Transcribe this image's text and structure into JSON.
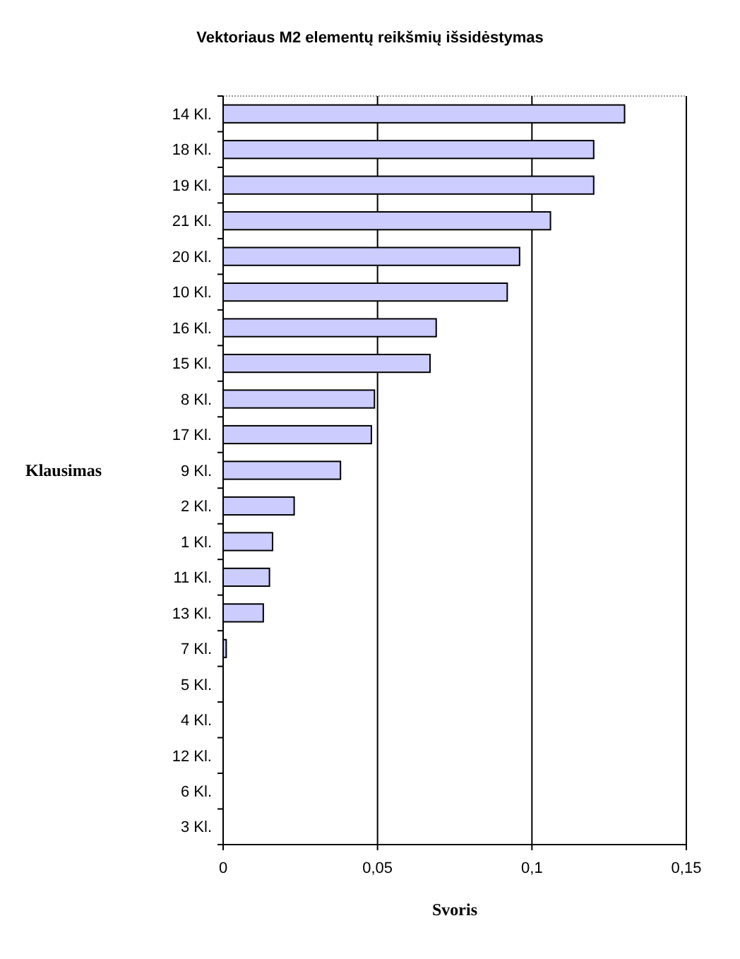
{
  "chart_data": {
    "type": "bar",
    "orientation": "horizontal",
    "title": "Vektoriaus M2 elementų reikšmių išsidėstymas",
    "xlabel": "Svoris",
    "ylabel": "Klausimas",
    "categories": [
      "14 Kl.",
      "18 Kl.",
      "19 Kl.",
      "21 Kl.",
      "20 Kl.",
      "10 Kl.",
      "16 Kl.",
      "15 Kl.",
      "8 Kl.",
      "17 Kl.",
      "9 Kl.",
      "2 Kl.",
      "1 Kl.",
      "11 Kl.",
      "13 Kl.",
      "7 Kl.",
      "5 Kl.",
      "4 Kl.",
      "12 Kl.",
      "6 Kl.",
      "3 Kl."
    ],
    "values": [
      0.13,
      0.12,
      0.12,
      0.106,
      0.096,
      0.092,
      0.069,
      0.067,
      0.049,
      0.048,
      0.038,
      0.023,
      0.016,
      0.015,
      0.013,
      0.001,
      0,
      0,
      0,
      0,
      0
    ],
    "color": "#ccccff",
    "xlim": [
      0,
      0.15
    ],
    "xticks": [
      {
        "value": 0,
        "label": "0"
      },
      {
        "value": 0.05,
        "label": "0,05"
      },
      {
        "value": 0.1,
        "label": "0,1"
      },
      {
        "value": 0.15,
        "label": "0,15"
      }
    ],
    "grid": "x"
  }
}
